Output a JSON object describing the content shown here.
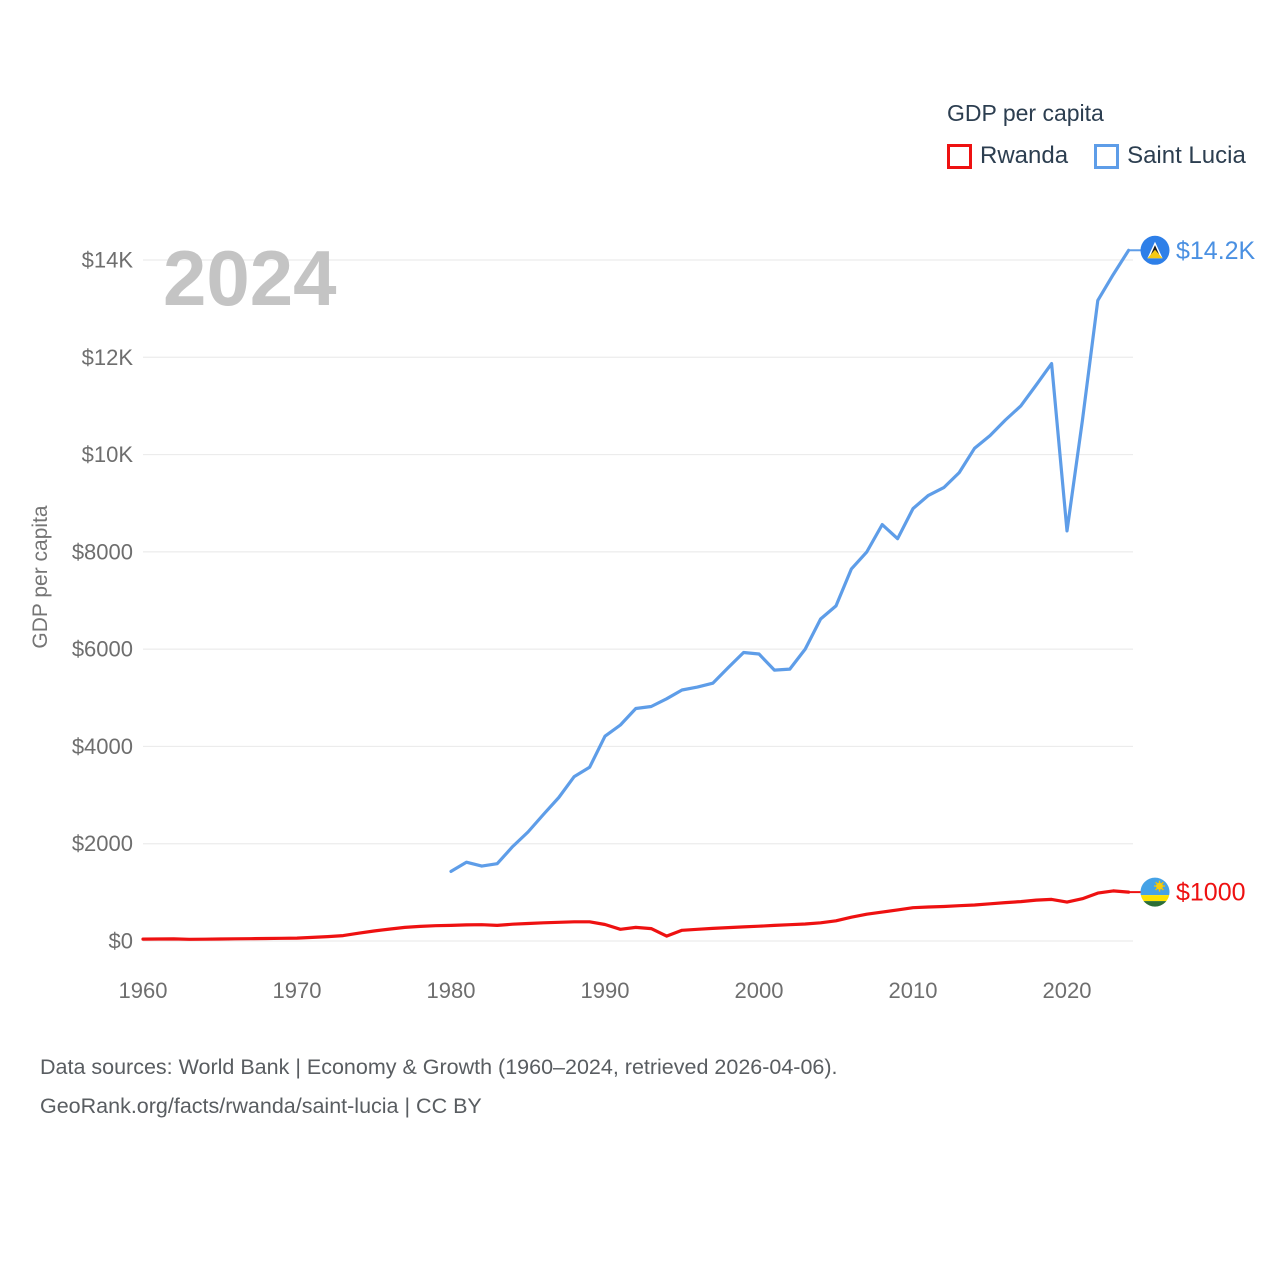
{
  "legend": {
    "title": "GDP per capita",
    "items": [
      {
        "label": "Rwanda",
        "color": "#ee1111"
      },
      {
        "label": "Saint Lucia",
        "color": "#5e9de8"
      }
    ]
  },
  "watermark": "2024",
  "footer": {
    "line1": "Data sources: World Bank | Economy & Growth (1960–2024, retrieved 2026-04-06).",
    "line2": "GeoRank.org/facts/rwanda/saint-lucia | CC BY"
  },
  "chart_data": {
    "type": "line",
    "title": "GDP per capita",
    "xlabel": "",
    "ylabel": "GDP per capita",
    "xlim": [
      1960,
      2024
    ],
    "ylim": [
      0,
      14000
    ],
    "grid": true,
    "legend_position": "top-right",
    "x_ticks": [
      1960,
      1970,
      1980,
      1990,
      2000,
      2010,
      2020
    ],
    "y_ticks": [
      {
        "v": 0,
        "label": "$0"
      },
      {
        "v": 2000,
        "label": "$2000"
      },
      {
        "v": 4000,
        "label": "$4000"
      },
      {
        "v": 6000,
        "label": "$6000"
      },
      {
        "v": 8000,
        "label": "$8000"
      },
      {
        "v": 10000,
        "label": "$10K"
      },
      {
        "v": 12000,
        "label": "$12K"
      },
      {
        "v": 14000,
        "label": "$14K"
      }
    ],
    "series": [
      {
        "name": "Rwanda",
        "color": "#ee1111",
        "start_year": 1960,
        "end_label": "$1000",
        "end_value": 1000,
        "flag": "rwanda",
        "values": [
          40,
          42,
          44,
          35,
          38,
          42,
          45,
          48,
          52,
          56,
          60,
          75,
          90,
          110,
          160,
          205,
          245,
          280,
          300,
          315,
          320,
          330,
          335,
          320,
          345,
          360,
          375,
          385,
          395,
          395,
          340,
          240,
          280,
          255,
          100,
          220,
          240,
          260,
          275,
          290,
          305,
          320,
          335,
          350,
          375,
          415,
          490,
          550,
          595,
          640,
          685,
          700,
          710,
          725,
          740,
          765,
          790,
          810,
          840,
          855,
          800,
          870,
          985,
          1030,
          1005
        ]
      },
      {
        "name": "Saint Lucia",
        "color": "#5e9de8",
        "start_year": 1980,
        "end_label": "$14.2K",
        "end_value": 14200,
        "flag": "saint-lucia",
        "values": [
          1430,
          1620,
          1540,
          1590,
          1940,
          2240,
          2600,
          2950,
          3380,
          3570,
          4210,
          4440,
          4780,
          4820,
          4980,
          5160,
          5220,
          5300,
          5620,
          5930,
          5900,
          5570,
          5590,
          6000,
          6620,
          6890,
          7650,
          8000,
          8560,
          8270,
          8890,
          9160,
          9320,
          9630,
          10130,
          10390,
          10710,
          11000,
          11430,
          11870,
          8430,
          10700,
          13170,
          13700,
          14200
        ]
      }
    ]
  }
}
